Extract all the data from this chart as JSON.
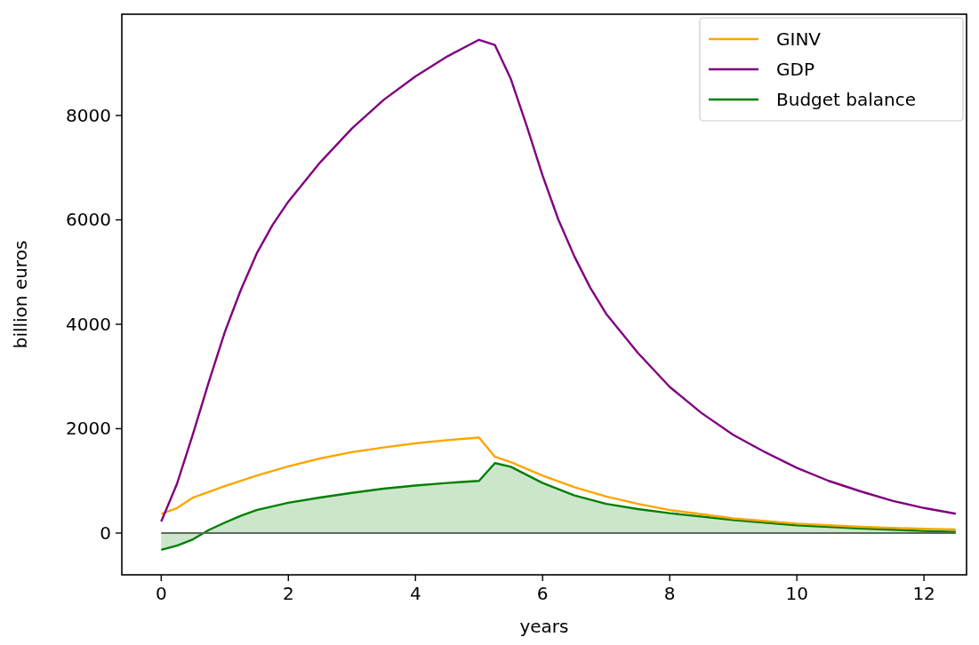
{
  "chart_data": {
    "type": "line",
    "xlabel": "years",
    "ylabel": "billion euros",
    "xlim": [
      -0.62,
      12.67
    ],
    "ylim": [
      -800,
      9940
    ],
    "xticks": [
      0,
      2,
      4,
      6,
      8,
      10,
      12
    ],
    "yticks": [
      0,
      2000,
      4000,
      6000,
      8000
    ],
    "grid": false,
    "legend": "top right",
    "ref_lines": [
      {
        "axis": "y",
        "value": 0,
        "color": "#5a6b5a"
      }
    ],
    "series": [
      {
        "name": "GINV",
        "color": "#ffa500",
        "x": [
          0,
          0.25,
          0.5,
          1,
          1.5,
          2,
          2.5,
          3,
          3.5,
          4,
          4.5,
          5,
          5.25,
          5.5,
          6,
          6.5,
          7,
          7.5,
          8,
          9,
          10,
          11,
          12,
          12.5
        ],
        "values": [
          370,
          480,
          680,
          900,
          1100,
          1280,
          1430,
          1550,
          1640,
          1720,
          1780,
          1830,
          1460,
          1360,
          1100,
          880,
          700,
          560,
          440,
          280,
          180,
          120,
          80,
          70
        ]
      },
      {
        "name": "GDP",
        "color": "#800080",
        "x": [
          0,
          0.25,
          0.5,
          0.75,
          1,
          1.25,
          1.5,
          1.75,
          2,
          2.5,
          3,
          3.5,
          4,
          4.5,
          5,
          5.25,
          5.5,
          5.75,
          6,
          6.25,
          6.5,
          6.75,
          7,
          7.5,
          8,
          8.5,
          9,
          9.5,
          10,
          10.5,
          11,
          11.5,
          12,
          12.5
        ],
        "values": [
          220,
          950,
          1900,
          2900,
          3850,
          4650,
          5350,
          5900,
          6350,
          7100,
          7750,
          8300,
          8750,
          9130,
          9450,
          9350,
          8700,
          7800,
          6850,
          6000,
          5300,
          4700,
          4200,
          3450,
          2800,
          2300,
          1880,
          1550,
          1250,
          1000,
          800,
          620,
          480,
          370
        ]
      },
      {
        "name": "Budget balance",
        "type": "area",
        "color": "#008000",
        "x": [
          0,
          0.25,
          0.5,
          0.75,
          1,
          1.25,
          1.5,
          2,
          2.5,
          3,
          3.5,
          4,
          4.5,
          5,
          5.25,
          5.5,
          6,
          6.5,
          7,
          7.5,
          8,
          9,
          10,
          11,
          12,
          12.5
        ],
        "values": [
          -320,
          -240,
          -120,
          60,
          200,
          330,
          440,
          580,
          680,
          770,
          850,
          910,
          960,
          1000,
          1340,
          1270,
          960,
          720,
          560,
          460,
          380,
          250,
          150,
          90,
          40,
          20
        ]
      }
    ]
  }
}
